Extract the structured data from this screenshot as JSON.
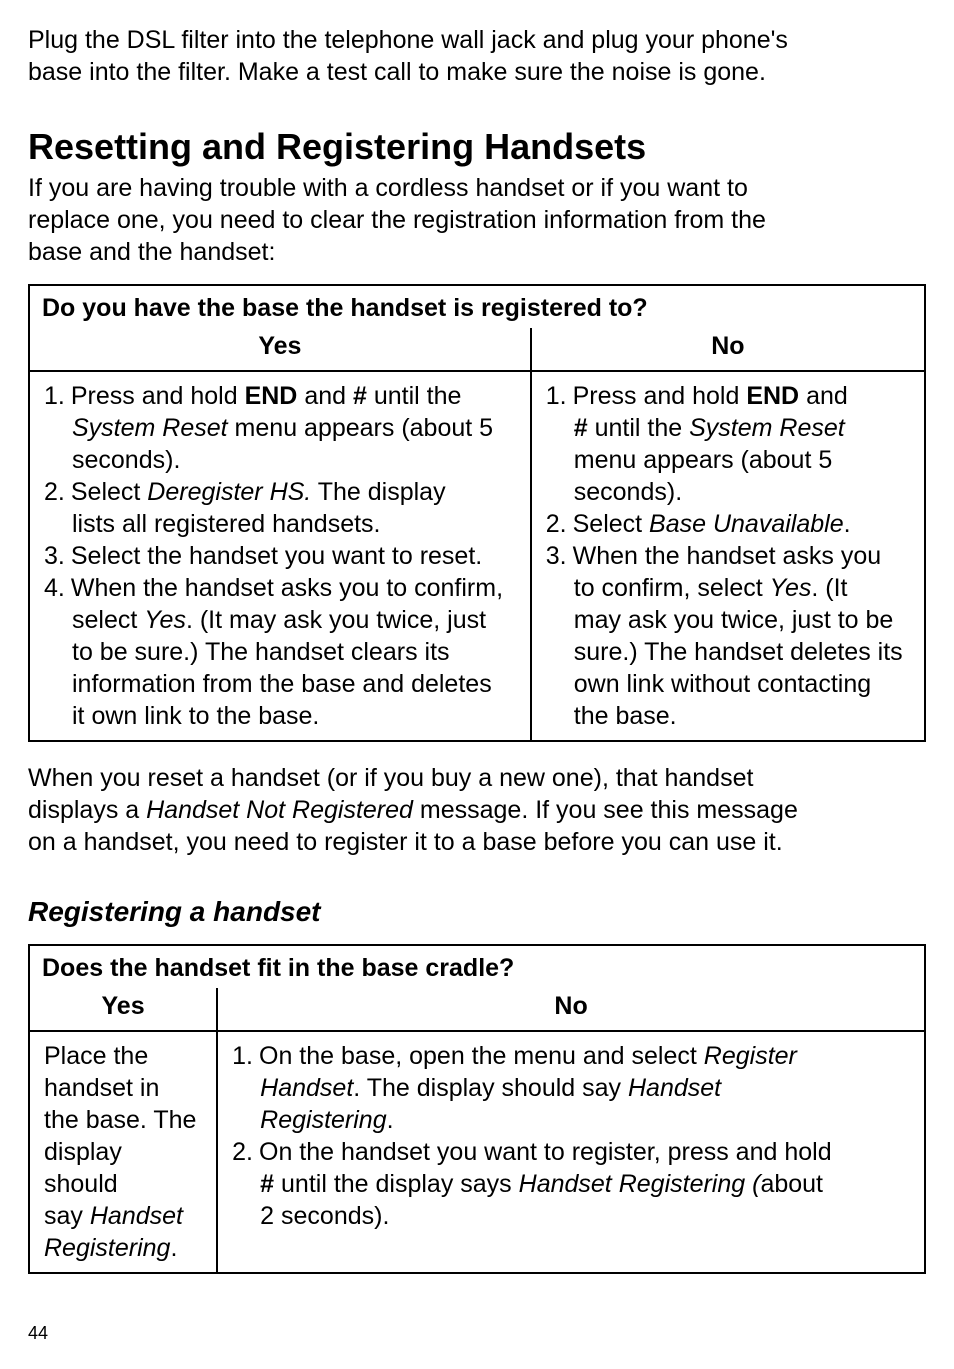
{
  "intro": {
    "line1": "Plug the DSL filter into the telephone wall jack and plug your phone's",
    "line2": "base into the filter. Make a test call to make sure the noise is gone."
  },
  "section1": {
    "heading": "Resetting and Registering Handsets",
    "p1": "If you are having trouble with a cordless handset or if you want to",
    "p2": "replace one, you need to clear the registration information from the",
    "p3": "base and the handset:"
  },
  "table1": {
    "title": "Do you have the base the handset is registered to?",
    "header_yes": "Yes",
    "header_no": "No",
    "yes": {
      "i1a": "1.",
      "i1b": "Press and hold ",
      "i1c": "END",
      "i1d": " and ",
      "i1e": "#",
      "i1f": " until the",
      "i1g": "System Reset",
      "i1h": " menu appears (about 5",
      "i1i": "seconds).",
      "i2a": "2.",
      "i2b": "Select ",
      "i2c": "Deregister HS.",
      "i2d": " The display",
      "i2e": "lists all registered handsets.",
      "i3a": "3.",
      "i3b": "Select the handset you want to reset.",
      "i4a": "4.",
      "i4b": "When the handset asks you to confirm,",
      "i4c": "select ",
      "i4d": "Yes",
      "i4e": ". (It may ask you twice, just",
      "i4f": "to be sure.) The handset clears its",
      "i4g": "information from the base and deletes",
      "i4h": "it own link to the base."
    },
    "no": {
      "i1a": "1.",
      "i1b": "Press and hold ",
      "i1c": "END",
      "i1d": " and",
      "i1e": "#",
      "i1f": " until the ",
      "i1g": "System Reset",
      "i1h": "menu appears (about 5",
      "i1i": "seconds).",
      "i2a": "2.",
      "i2b": "Select ",
      "i2c": "Base Unavailable",
      "i2d": ".",
      "i3a": "3.",
      "i3b": "When the handset asks you",
      "i3c": "to confirm, select ",
      "i3d": "Yes",
      "i3e": ". (It",
      "i3f": "may ask you twice, just to be",
      "i3g": "sure.) The handset deletes its",
      "i3h": "own link without contacting",
      "i3i": "the base."
    }
  },
  "para2": {
    "l1": "When you reset a handset (or if you buy a new one), that handset",
    "l2a": "displays a ",
    "l2b": "Handset Not Registered",
    "l2c": " message. If you see this message",
    "l3": "on a handset, you need to register it to a base before you can use it."
  },
  "section2": {
    "heading": "Registering a handset"
  },
  "table2": {
    "title": "Does the handset fit in the base cradle?",
    "header_yes": "Yes",
    "header_no": "No",
    "yes": {
      "l1": "Place the",
      "l2": "handset in",
      "l3": "the base. The",
      "l4": "display should",
      "l5a": "say ",
      "l5b": "Handset",
      "l6": "Registering",
      "l6b": "."
    },
    "no": {
      "i1a": "1.",
      "i1b": "On the base, open the menu and select ",
      "i1c": "Register",
      "i1d": "Handset",
      "i1e": ". The display should say ",
      "i1f": "Handset",
      "i1g": "Registering",
      "i1h": ".",
      "i2a": "2.",
      "i2b": "On the handset you want to register, press and hold",
      "i2c": "#",
      "i2d": " until the display says ",
      "i2e": "Handset Registering (",
      "i2f": "about",
      "i2g": "2 seconds)."
    }
  },
  "pagenum": "44"
}
